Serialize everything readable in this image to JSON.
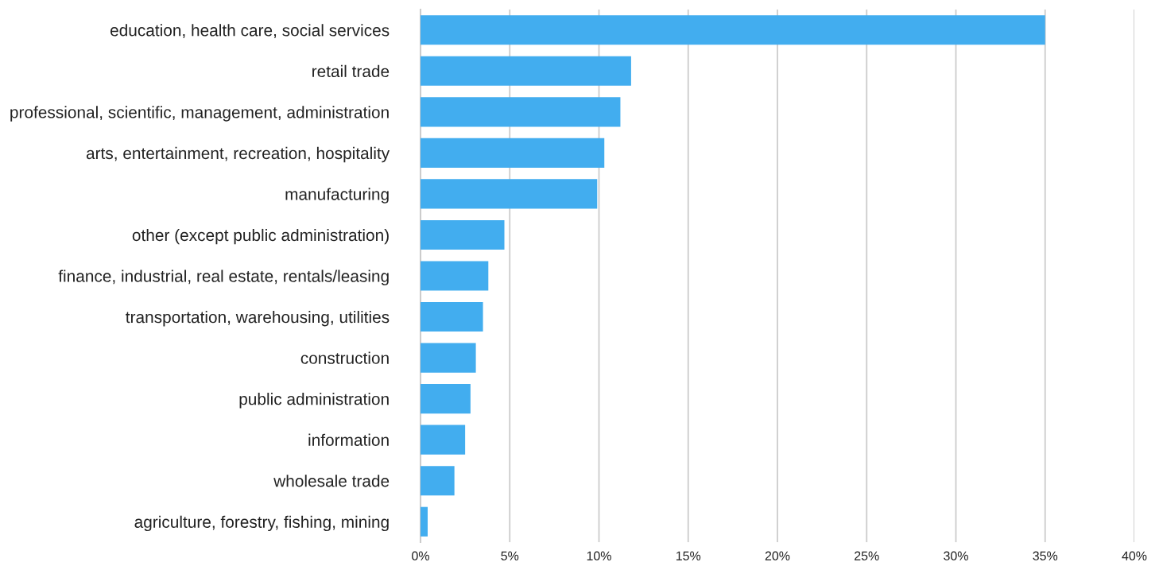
{
  "chart_data": {
    "type": "bar",
    "orientation": "horizontal",
    "categories": [
      "education, health care, social services",
      "retail trade",
      "professional, scientific, management, administration",
      "arts, entertainment, recreation, hospitality",
      "manufacturing",
      "other (except public administration)",
      "finance, industrial, real estate, rentals/leasing",
      "transportation, warehousing, utilities",
      "construction",
      "public administration",
      "information",
      "wholesale trade",
      "agriculture, forestry, fishing, mining"
    ],
    "values": [
      35.0,
      11.8,
      11.2,
      10.3,
      9.9,
      4.7,
      3.8,
      3.5,
      3.1,
      2.8,
      2.5,
      1.9,
      0.4
    ],
    "color": "#42adef",
    "xlim": [
      0,
      40
    ],
    "xticks": [
      {
        "value": 0,
        "label": "0%"
      },
      {
        "value": 5,
        "label": "5%"
      },
      {
        "value": 10,
        "label": "10%"
      },
      {
        "value": 15,
        "label": "15%"
      },
      {
        "value": 20,
        "label": "20%"
      },
      {
        "value": 25,
        "label": "25%"
      },
      {
        "value": 30,
        "label": "30%"
      },
      {
        "value": 35,
        "label": "35%"
      },
      {
        "value": 40,
        "label": "40%"
      }
    ],
    "grid": "x"
  }
}
